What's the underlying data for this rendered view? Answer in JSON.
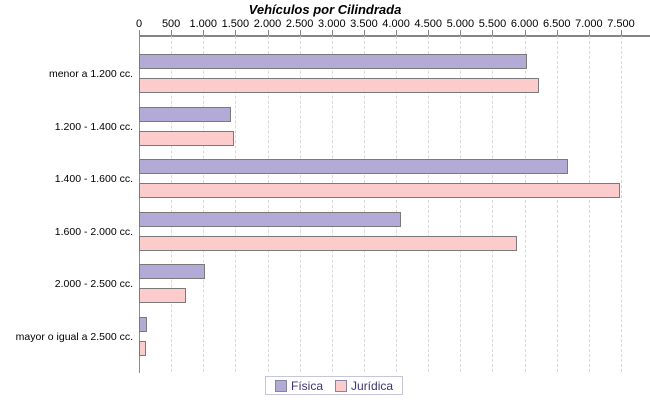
{
  "title": "Vehículos por Cilindrada",
  "colors": {
    "fisica": "#b3aad5",
    "juridica": "#fccccc",
    "bar_border": "#7a7a7a",
    "grid": "#d9d9d9",
    "axis": "#848484",
    "legend_border": "#c6c6da",
    "legend_text": "#3f3473",
    "text": "#000000"
  },
  "legend": {
    "items": [
      {
        "label": "Física",
        "color": "#b3aad5"
      },
      {
        "label": "Jurídica",
        "color": "#fccccc"
      }
    ]
  },
  "chart_data": {
    "type": "bar",
    "orientation": "horizontal",
    "title": "Vehículos por Cilindrada",
    "categories": [
      "menor a 1.200 cc.",
      "1.200 - 1.400 cc.",
      "1.400 - 1.600 cc.",
      "1.600 - 2.000 cc.",
      "2.000 - 2.500 cc.",
      "mayor o igual a 2.500 cc."
    ],
    "series": [
      {
        "name": "Física",
        "color": "#b3aad5",
        "values": [
          6000,
          1400,
          6650,
          4050,
          1000,
          100
        ]
      },
      {
        "name": "Jurídica",
        "color": "#fccccc",
        "values": [
          6200,
          1450,
          7450,
          5850,
          700,
          80
        ]
      }
    ],
    "xlim": [
      0,
      7500
    ],
    "x_tick_interval": 500,
    "x_tick_labels": [
      "0",
      "500",
      "1.000",
      "1.500",
      "2.000",
      "2.500",
      "3.000",
      "3.500",
      "4.000",
      "4.500",
      "5.000",
      "5.500",
      "6.000",
      "6.500",
      "7.000",
      "7.500"
    ],
    "grid": true,
    "legend_position": "bottom"
  }
}
